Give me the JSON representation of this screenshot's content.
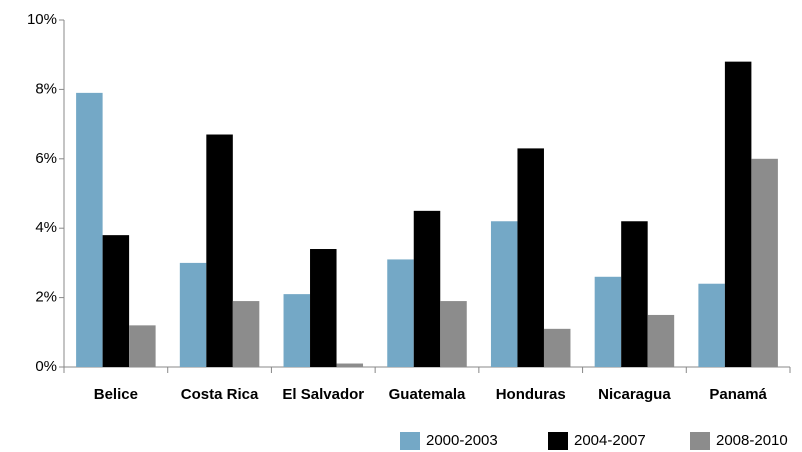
{
  "chart_data": {
    "type": "bar",
    "categories": [
      "Belice",
      "Costa Rica",
      "El Salvador",
      "Guatemala",
      "Honduras",
      "Nicaragua",
      "Panamá"
    ],
    "series": [
      {
        "name": "2000-2003",
        "color": "#74a8c6",
        "values": [
          7.9,
          3.0,
          2.1,
          3.1,
          4.2,
          2.6,
          2.4
        ]
      },
      {
        "name": "2004-2007",
        "color": "#000000",
        "values": [
          3.8,
          6.7,
          3.4,
          4.5,
          6.3,
          4.2,
          8.8
        ]
      },
      {
        "name": "2008-2010",
        "color": "#8c8c8c",
        "values": [
          1.2,
          1.9,
          0.1,
          1.9,
          1.1,
          1.5,
          6.0
        ]
      }
    ],
    "ylim": [
      0,
      10
    ],
    "yticks": [
      {
        "value": 0,
        "label": "0%"
      },
      {
        "value": 2,
        "label": "2%"
      },
      {
        "value": 4,
        "label": "4%"
      },
      {
        "value": 6,
        "label": "6%"
      },
      {
        "value": 8,
        "label": "8%"
      },
      {
        "value": 10,
        "label": "10%"
      }
    ],
    "grid": false,
    "legend": "bottom-right"
  }
}
